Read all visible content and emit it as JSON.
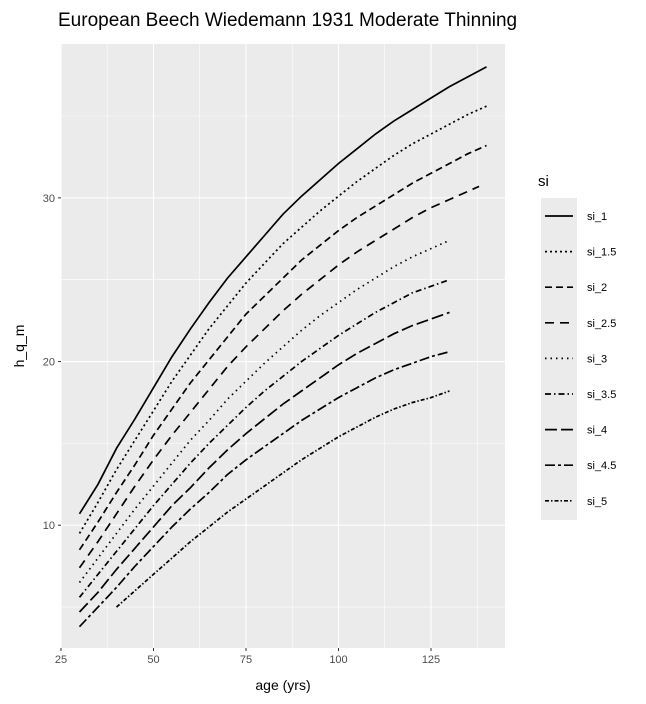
{
  "chart_data": {
    "type": "line",
    "title": "European Beech Wiedemann 1931 Moderate Thinning",
    "xlabel": "age (yrs)",
    "ylabel": "h_q_m",
    "xlim": [
      25,
      145
    ],
    "ylim": [
      2.5,
      39.4
    ],
    "xticks": [
      25,
      50,
      75,
      100,
      125
    ],
    "yticks": [
      10,
      20,
      30
    ],
    "grid": true,
    "legend": {
      "title": "si",
      "position": "right"
    },
    "series": [
      {
        "name": "si_1",
        "dash": "solid",
        "x": [
          30,
          35,
          40,
          45,
          50,
          55,
          60,
          65,
          70,
          75,
          80,
          85,
          90,
          95,
          100,
          105,
          110,
          115,
          120,
          125,
          130,
          135,
          140
        ],
        "y": [
          10.7,
          12.5,
          14.7,
          16.5,
          18.4,
          20.3,
          22.0,
          23.6,
          25.1,
          26.4,
          27.7,
          29.0,
          30.1,
          31.1,
          32.1,
          33.0,
          33.9,
          34.7,
          35.4,
          36.1,
          36.8,
          37.4,
          38.0
        ]
      },
      {
        "name": "si_1.5",
        "dash": "2,3",
        "x": [
          30,
          35,
          40,
          45,
          50,
          55,
          60,
          65,
          70,
          75,
          80,
          85,
          90,
          95,
          100,
          105,
          110,
          115,
          120,
          125,
          130,
          135,
          140
        ],
        "y": [
          9.5,
          11.4,
          13.4,
          15.2,
          17.0,
          18.8,
          20.4,
          22.0,
          23.4,
          24.8,
          26.0,
          27.2,
          28.2,
          29.2,
          30.1,
          31.0,
          31.8,
          32.6,
          33.3,
          33.9,
          34.5,
          35.1,
          35.6
        ]
      },
      {
        "name": "si_2",
        "dash": "7,4",
        "x": [
          30,
          35,
          40,
          45,
          50,
          55,
          60,
          65,
          70,
          75,
          80,
          85,
          90,
          95,
          100,
          105,
          110,
          115,
          120,
          125,
          130,
          135,
          140
        ],
        "y": [
          8.5,
          10.2,
          12.0,
          13.7,
          15.5,
          17.1,
          18.7,
          20.1,
          21.5,
          22.9,
          24.0,
          25.1,
          26.2,
          27.1,
          28.0,
          28.8,
          29.5,
          30.2,
          30.9,
          31.5,
          32.1,
          32.7,
          33.2
        ]
      },
      {
        "name": "si_2.5",
        "dash": "9,6",
        "x": [
          30,
          35,
          40,
          45,
          50,
          55,
          60,
          65,
          70,
          75,
          80,
          85,
          90,
          95,
          100,
          105,
          110,
          115,
          120,
          125,
          130,
          135,
          138
        ],
        "y": [
          7.4,
          9.0,
          10.7,
          12.4,
          14.0,
          15.5,
          16.9,
          18.3,
          19.7,
          20.9,
          22.0,
          23.1,
          24.1,
          25.0,
          25.9,
          26.7,
          27.4,
          28.1,
          28.8,
          29.4,
          29.9,
          30.4,
          30.7
        ]
      },
      {
        "name": "si_3",
        "dash": "1.5,4",
        "x": [
          30,
          35,
          40,
          45,
          50,
          55,
          60,
          65,
          70,
          75,
          80,
          85,
          90,
          95,
          100,
          105,
          110,
          115,
          120,
          125,
          130
        ],
        "y": [
          6.5,
          8.0,
          9.5,
          11.0,
          12.4,
          13.8,
          15.2,
          16.4,
          17.7,
          18.8,
          19.9,
          20.9,
          21.9,
          22.8,
          23.6,
          24.4,
          25.1,
          25.8,
          26.4,
          26.9,
          27.4
        ]
      },
      {
        "name": "si_3.5",
        "dash": "6,3,1.5,3",
        "x": [
          30,
          35,
          40,
          45,
          50,
          55,
          60,
          65,
          70,
          75,
          80,
          85,
          90,
          95,
          100,
          105,
          110,
          115,
          120,
          125,
          130
        ],
        "y": [
          5.6,
          7.0,
          8.4,
          9.8,
          11.2,
          12.5,
          13.8,
          15.0,
          16.1,
          17.2,
          18.2,
          19.1,
          20.0,
          20.8,
          21.6,
          22.3,
          23.0,
          23.6,
          24.2,
          24.6,
          25.0
        ]
      },
      {
        "name": "si_4",
        "dash": "12,4",
        "x": [
          30,
          35,
          40,
          45,
          50,
          55,
          60,
          65,
          70,
          75,
          80,
          85,
          90,
          95,
          100,
          105,
          110,
          115,
          120,
          125,
          130
        ],
        "y": [
          4.7,
          5.9,
          7.3,
          8.6,
          9.9,
          11.2,
          12.3,
          13.5,
          14.6,
          15.6,
          16.5,
          17.4,
          18.2,
          19.0,
          19.8,
          20.5,
          21.1,
          21.7,
          22.2,
          22.6,
          23.0
        ]
      },
      {
        "name": "si_4.5",
        "dash": "10,3,3,3",
        "x": [
          30,
          35,
          40,
          45,
          50,
          55,
          60,
          65,
          70,
          75,
          80,
          85,
          90,
          95,
          100,
          105,
          110,
          115,
          120,
          125,
          130
        ],
        "y": [
          3.8,
          5.0,
          6.2,
          7.5,
          8.7,
          9.9,
          11.0,
          12.0,
          13.1,
          14.0,
          14.8,
          15.6,
          16.4,
          17.1,
          17.8,
          18.4,
          19.0,
          19.5,
          19.9,
          20.3,
          20.6
        ]
      },
      {
        "name": "si_5",
        "dash": "4,2,1.5,2",
        "x": [
          40,
          45,
          50,
          55,
          60,
          65,
          70,
          75,
          80,
          85,
          90,
          95,
          100,
          105,
          110,
          115,
          120,
          125,
          130
        ],
        "y": [
          5.0,
          6.0,
          7.0,
          8.0,
          9.0,
          9.9,
          10.8,
          11.6,
          12.4,
          13.2,
          14.0,
          14.7,
          15.4,
          16.0,
          16.6,
          17.1,
          17.5,
          17.8,
          18.2
        ]
      }
    ]
  }
}
